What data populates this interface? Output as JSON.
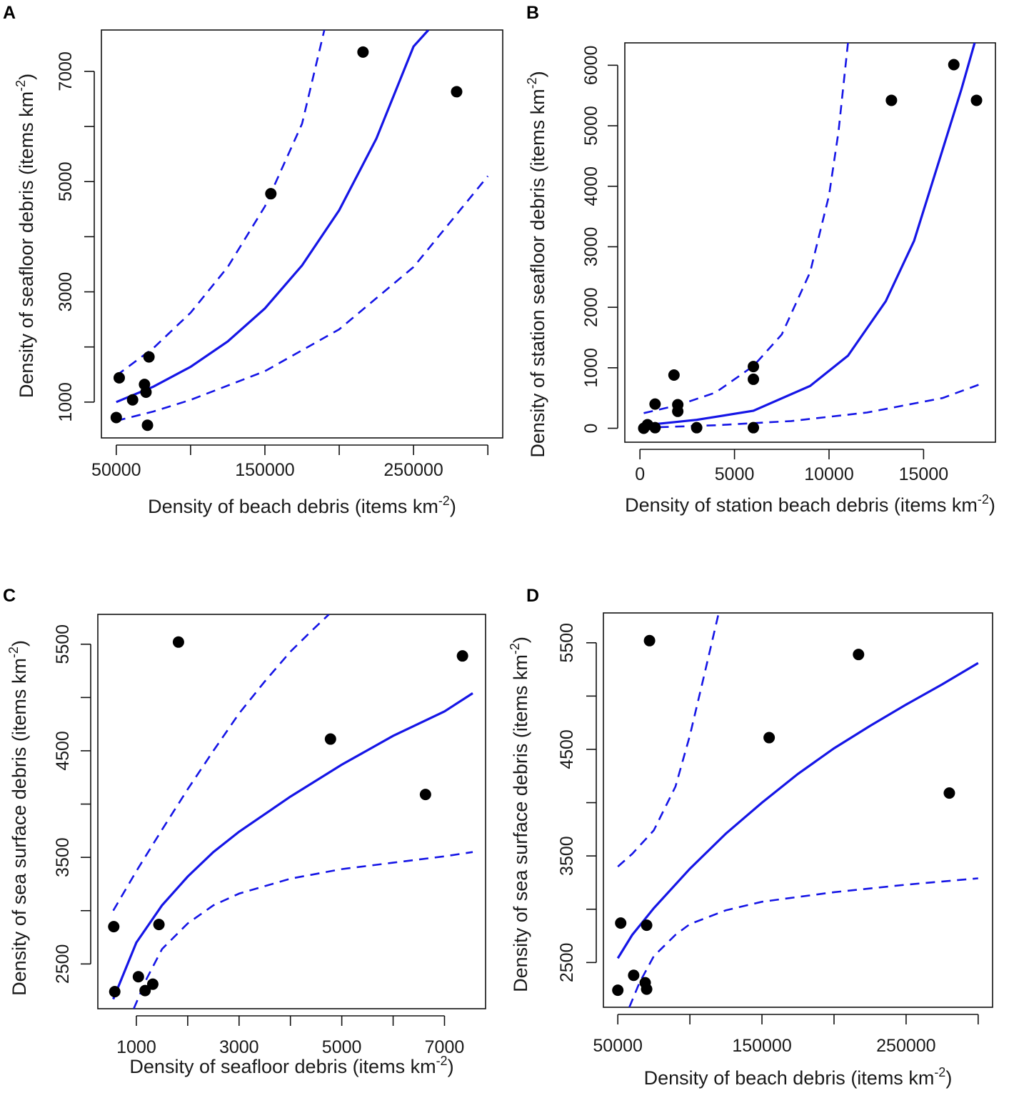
{
  "colors": {
    "fit": "#1515e6",
    "points": "#000000"
  },
  "chart_data": [
    {
      "panel": "A",
      "type": "scatter",
      "xlabel": "Density of beach debris (items km",
      "ylabel": "Density of seafloor debris (items km",
      "unit_exponent": "-2",
      "unit_close": ")",
      "xlim": [
        40000,
        310000
      ],
      "ylim": [
        350,
        7750
      ],
      "xticks": [
        50000,
        100000,
        150000,
        200000,
        250000,
        300000
      ],
      "xtick_labels": [
        "50000",
        "",
        "150000",
        "",
        "250000",
        ""
      ],
      "yticks": [
        1000,
        2000,
        3000,
        4000,
        5000,
        6000,
        7000
      ],
      "ytick_labels": [
        "1000",
        "",
        "3000",
        "",
        "5000",
        "",
        "7000"
      ],
      "points": {
        "x": [
          50000,
          52000,
          61000,
          69000,
          70000,
          71000,
          72000,
          154000,
          216000,
          279000
        ],
        "y": [
          720,
          1440,
          1040,
          1320,
          1180,
          580,
          1820,
          4780,
          7350,
          6630
        ]
      },
      "fit": {
        "x": [
          50000,
          75000,
          100000,
          125000,
          150000,
          175000,
          200000,
          225000,
          250000,
          260000
        ],
        "y": [
          1000,
          1280,
          1640,
          2100,
          2700,
          3480,
          4480,
          5780,
          7450,
          7750
        ]
      },
      "ci_upper": {
        "x": [
          50000,
          75000,
          100000,
          125000,
          150000,
          175000,
          190000
        ],
        "y": [
          1480,
          1980,
          2620,
          3450,
          4550,
          6050,
          7750
        ]
      },
      "ci_lower": {
        "x": [
          50000,
          75000,
          100000,
          150000,
          200000,
          250000,
          300000
        ],
        "y": [
          660,
          830,
          1040,
          1560,
          2320,
          3450,
          5100
        ]
      }
    },
    {
      "panel": "B",
      "type": "scatter",
      "xlabel": "Density of station beach debris (items km",
      "ylabel": "Density of station seafloor debris (items km",
      "unit_exponent": "-2",
      "unit_close": ")",
      "xlim": [
        -800,
        18800
      ],
      "ylim": [
        -230,
        6370
      ],
      "xticks": [
        0,
        5000,
        10000,
        15000
      ],
      "xtick_labels": [
        "0",
        "5000",
        "10000",
        "15000"
      ],
      "yticks": [
        0,
        1000,
        2000,
        3000,
        4000,
        5000,
        6000
      ],
      "ytick_labels": [
        "0",
        "1000",
        "2000",
        "3000",
        "4000",
        "5000",
        "6000"
      ],
      "points": {
        "x": [
          200,
          400,
          800,
          800,
          1800,
          2000,
          2000,
          3000,
          6000,
          6000,
          6000,
          13300,
          16600,
          17800
        ],
        "y": [
          0,
          60,
          10,
          400,
          880,
          390,
          280,
          10,
          1020,
          810,
          10,
          5420,
          6010,
          5420
        ]
      },
      "fit": {
        "x": [
          200,
          3000,
          6000,
          9000,
          11000,
          13000,
          14500,
          16000,
          17000,
          17700
        ],
        "y": [
          50,
          140,
          290,
          700,
          1200,
          2100,
          3100,
          4600,
          5600,
          6370
        ]
      },
      "ci_upper": {
        "x": [
          200,
          2000,
          4000,
          6000,
          7500,
          9000,
          10000,
          10500,
          11000
        ],
        "y": [
          250,
          380,
          590,
          1030,
          1550,
          2580,
          3850,
          4900,
          6370
        ]
      },
      "ci_lower": {
        "x": [
          200,
          4000,
          8000,
          12000,
          16000,
          18000
        ],
        "y": [
          10,
          50,
          120,
          260,
          500,
          730
        ]
      }
    },
    {
      "panel": "C",
      "type": "scatter",
      "xlabel": "Density of seafloor debris (items km",
      "ylabel": "Density of sea surface debris (items km",
      "unit_exponent": "-2",
      "unit_close": ")",
      "xlim": [
        250,
        7800
      ],
      "ylim": [
        2080,
        5780
      ],
      "xticks": [
        1000,
        2000,
        3000,
        4000,
        5000,
        6000,
        7000
      ],
      "xtick_labels": [
        "1000",
        "",
        "3000",
        "",
        "5000",
        "",
        "7000"
      ],
      "yticks": [
        2500,
        3000,
        3500,
        4000,
        4500,
        5000,
        5500
      ],
      "ytick_labels": [
        "2500",
        "",
        "3500",
        "",
        "4500",
        "",
        "5500"
      ],
      "points": {
        "x": [
          560,
          580,
          1040,
          1170,
          1320,
          1440,
          1820,
          4780,
          6630,
          7350
        ],
        "y": [
          2850,
          2240,
          2380,
          2250,
          2310,
          2870,
          5520,
          4610,
          4090,
          5390
        ]
      },
      "fit": {
        "x": [
          550,
          1000,
          1500,
          2000,
          2500,
          3000,
          4000,
          5000,
          6000,
          7000,
          7550
        ],
        "y": [
          2170,
          2700,
          3050,
          3320,
          3550,
          3740,
          4070,
          4370,
          4640,
          4870,
          5040
        ]
      },
      "ci_upper": {
        "x": [
          550,
          1000,
          1500,
          2000,
          2500,
          3000,
          3500,
          4000,
          4400,
          4750
        ],
        "y": [
          3000,
          3370,
          3760,
          4140,
          4500,
          4850,
          5150,
          5430,
          5620,
          5780
        ]
      },
      "ci_lower": {
        "x": [
          950,
          1200,
          1500,
          2000,
          2500,
          3000,
          4000,
          5000,
          6000,
          7000,
          7550
        ],
        "y": [
          2080,
          2360,
          2640,
          2880,
          3050,
          3160,
          3300,
          3390,
          3450,
          3510,
          3550
        ]
      }
    },
    {
      "panel": "D",
      "type": "scatter",
      "xlabel": "Density of beach debris (items km",
      "ylabel": "Density of sea surface debris (items km",
      "unit_exponent": "-2",
      "unit_close": ")",
      "xlim": [
        40000,
        310000
      ],
      "ylim": [
        2080,
        5780
      ],
      "xticks": [
        50000,
        100000,
        150000,
        200000,
        250000,
        300000
      ],
      "xtick_labels": [
        "50000",
        "",
        "150000",
        "",
        "250000",
        ""
      ],
      "yticks": [
        2500,
        3000,
        3500,
        4000,
        4500,
        5000,
        5500
      ],
      "ytick_labels": [
        "2500",
        "",
        "3500",
        "",
        "4500",
        "",
        "5500"
      ],
      "points": {
        "x": [
          50000,
          52000,
          61000,
          69000,
          70000,
          70000,
          72000,
          155000,
          217000,
          280000
        ],
        "y": [
          2240,
          2870,
          2380,
          2310,
          2250,
          2850,
          5520,
          4610,
          5390,
          4090
        ]
      },
      "fit": {
        "x": [
          50000,
          60000,
          75000,
          100000,
          125000,
          150000,
          175000,
          200000,
          225000,
          250000,
          275000,
          300000
        ],
        "y": [
          2540,
          2760,
          3010,
          3380,
          3710,
          4000,
          4270,
          4510,
          4720,
          4920,
          5110,
          5310
        ]
      },
      "ci_upper": {
        "x": [
          50000,
          60000,
          75000,
          90000,
          100000,
          110000,
          120000
        ],
        "y": [
          3400,
          3520,
          3740,
          4150,
          4630,
          5200,
          5780
        ]
      },
      "ci_lower": {
        "x": [
          58000,
          65000,
          75000,
          90000,
          100000,
          125000,
          150000,
          200000,
          250000,
          300000
        ],
        "y": [
          2080,
          2310,
          2560,
          2760,
          2860,
          2990,
          3070,
          3160,
          3230,
          3290
        ]
      }
    }
  ]
}
